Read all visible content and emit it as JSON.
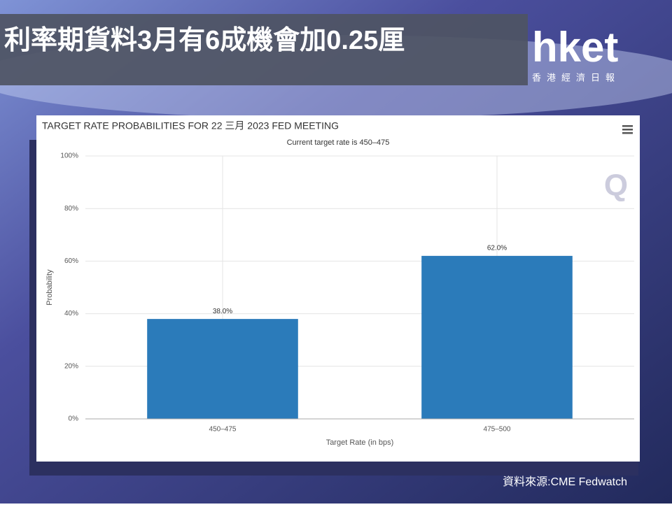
{
  "headline": "利率期貨料3月有6成機會加0.25厘",
  "logo": {
    "name": "hket",
    "subtitle": "香港經濟日報"
  },
  "source": "資料來源:CME Fedwatch",
  "chart_data": {
    "type": "bar",
    "title": "TARGET RATE PROBABILITIES FOR 22 三月 2023 FED MEETING",
    "subtitle": "Current target rate is 450–475",
    "x_label": "Target Rate (in bps)",
    "y_label": "Probability",
    "categories": [
      "450–475",
      "475–500"
    ],
    "values": [
      38,
      62
    ],
    "value_labels": [
      "38.0%",
      "62.0%"
    ],
    "color": "#2b7bba",
    "ylim": [
      0,
      100
    ],
    "yticks": [
      {
        "value": 0,
        "label": "0%"
      },
      {
        "value": 20,
        "label": "20%"
      },
      {
        "value": 40,
        "label": "40%"
      },
      {
        "value": 60,
        "label": "60%"
      },
      {
        "value": 80,
        "label": "80%"
      },
      {
        "value": 100,
        "label": "100%"
      }
    ],
    "grid": true
  }
}
